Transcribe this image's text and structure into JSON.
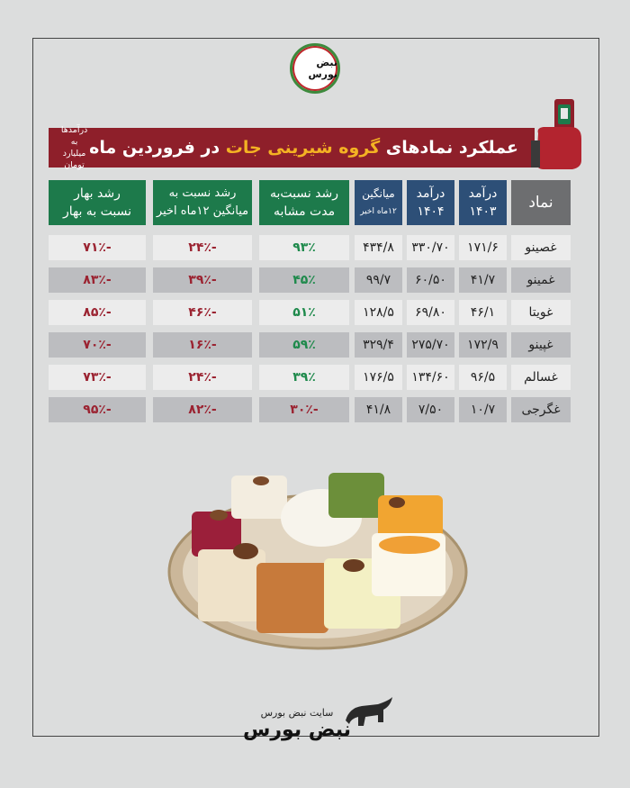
{
  "logo_text": "نبض بورس",
  "banner": {
    "title_prefix": "عملکرد نمادهای ",
    "title_highlight": "گروه شیرینی جات",
    "title_suffix": " در فروردین ماه",
    "note_line1": "درآمدها به",
    "note_line2": "میلیارد تومان"
  },
  "headers": {
    "symbol": "نماد",
    "rev1403_a": "درآمد",
    "rev1403_b": "۱۴۰۳",
    "rev1404_a": "درآمد",
    "rev1404_b": "۱۴۰۴",
    "avg_a": "میانگین",
    "avg_b": "۱۲ماه اخیر",
    "growth_same_a": "رشد نسبت‌به",
    "growth_same_b": "مدت مشابه",
    "growth_avg_a": "رشد نسبت به",
    "growth_avg_b": "میانگین ۱۲ماه اخیر",
    "growth_spring_a": "رشد بهار",
    "growth_spring_b": "نسبت به بهار"
  },
  "rows": [
    {
      "symbol": "غصینو",
      "rev1403": "۱۷۱/۶",
      "rev1404": "۳۳۰/۷۰",
      "avg12": "۴۳۴/۸",
      "growth_same": "۹۳٪",
      "growth_avg": "-۲۴٪",
      "growth_spring": "-۷۱٪"
    },
    {
      "symbol": "غمینو",
      "rev1403": "۴۱/۷",
      "rev1404": "۶۰/۵۰",
      "avg12": "۹۹/۷",
      "growth_same": "۴۵٪",
      "growth_avg": "-۳۹٪",
      "growth_spring": "-۸۳٪"
    },
    {
      "symbol": "غویتا",
      "rev1403": "۴۶/۱",
      "rev1404": "۶۹/۸۰",
      "avg12": "۱۲۸/۵",
      "growth_same": "۵۱٪",
      "growth_avg": "-۴۶٪",
      "growth_spring": "-۸۵٪"
    },
    {
      "symbol": "غپینو",
      "rev1403": "۱۷۲/۹",
      "rev1404": "۲۷۵/۷۰",
      "avg12": "۳۲۹/۴",
      "growth_same": "۵۹٪",
      "growth_avg": "-۱۶٪",
      "growth_spring": "-۷۰٪"
    },
    {
      "symbol": "غسالم",
      "rev1403": "۹۶/۵",
      "rev1404": "۱۳۴/۶۰",
      "avg12": "۱۷۶/۵",
      "growth_same": "۳۹٪",
      "growth_avg": "-۲۴٪",
      "growth_spring": "-۷۳٪"
    },
    {
      "symbol": "غگرجی",
      "rev1403": "۱۰/۷",
      "rev1404": "۷/۵۰",
      "avg12": "۴۱/۸",
      "growth_same": "-۳۰٪",
      "growth_avg": "-۸۲٪",
      "growth_spring": "-۹۵٪"
    }
  ],
  "footer": {
    "site_label": "سایت نبض بورس",
    "logo_text": "نبض بورس"
  },
  "colors": {
    "banner": "#8e1f2a",
    "highlight": "#f4b223",
    "header_blue": "#2d4f77",
    "header_green": "#1d7a4b",
    "positive": "#1f8a4c",
    "negative": "#9b2331"
  }
}
